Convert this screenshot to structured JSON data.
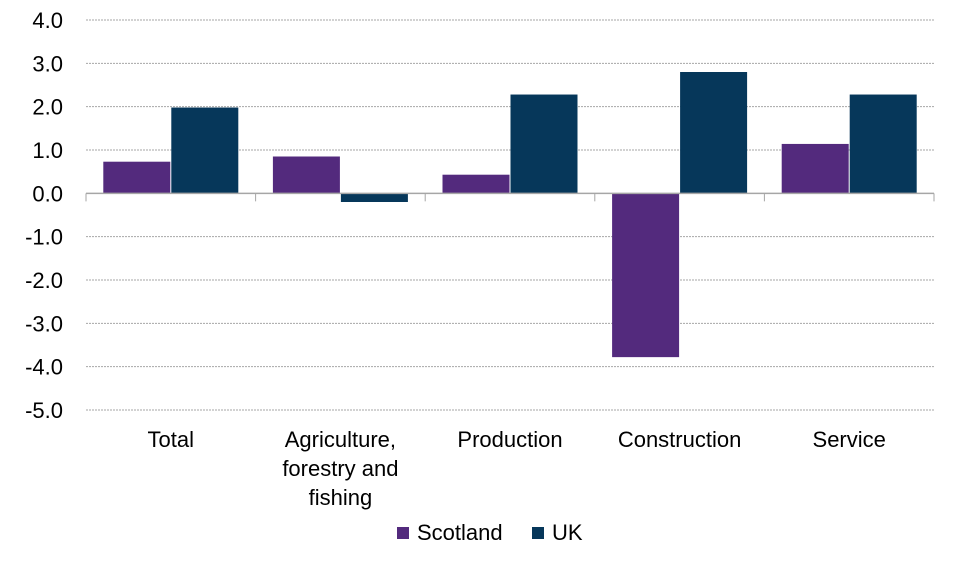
{
  "chart_data": {
    "type": "bar",
    "categories": [
      "Total",
      "Agriculture, forestry and fishing",
      "Production",
      "Construction",
      "Service"
    ],
    "category_lines": [
      [
        "Total"
      ],
      [
        "Agriculture,",
        "forestry and",
        "fishing"
      ],
      [
        "Production"
      ],
      [
        "Construction"
      ],
      [
        "Service"
      ]
    ],
    "series": [
      {
        "name": "Scotland",
        "color": "#532a7d",
        "values": [
          0.73,
          0.85,
          0.43,
          -3.78,
          1.14
        ]
      },
      {
        "name": "UK",
        "color": "#06375a",
        "values": [
          1.98,
          -0.2,
          2.28,
          2.8,
          2.28
        ]
      }
    ],
    "ylim": [
      -5.0,
      4.0
    ],
    "yticks": [
      4.0,
      3.0,
      2.0,
      1.0,
      0.0,
      -1.0,
      -2.0,
      -3.0,
      -4.0,
      -5.0
    ],
    "ytick_labels": [
      "4.0",
      "3.0",
      "2.0",
      "1.0",
      "0.0",
      "-1.0",
      "-2.0",
      "-3.0",
      "-4.0",
      "-5.0"
    ],
    "grid": true,
    "legend_position": "bottom"
  }
}
